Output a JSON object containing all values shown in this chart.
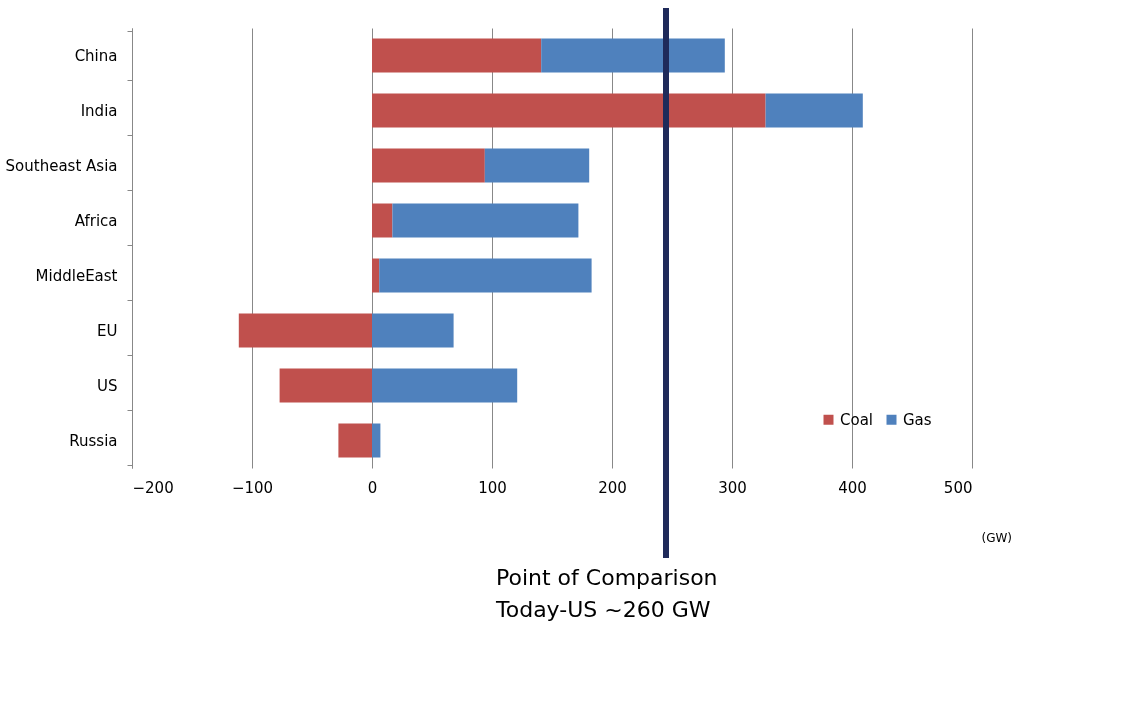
{
  "chart_data": {
    "type": "bar",
    "orientation": "horizontal",
    "stacked": true,
    "categories": [
      "China",
      "India",
      "Southeast Asia",
      "Africa",
      "MiddleEast",
      "EU",
      "US",
      "Russia"
    ],
    "series": [
      {
        "name": "Coal",
        "color": "#c0504d",
        "values": [
          141,
          328,
          94,
          17,
          6,
          -111,
          -77,
          -28
        ]
      },
      {
        "name": "Gas",
        "color": "#4f81bd",
        "values": [
          153,
          81,
          87,
          155,
          177,
          68,
          121,
          7
        ]
      }
    ],
    "xlim": [
      -200,
      500
    ],
    "xticks": [
      -200,
      -100,
      0,
      100,
      200,
      300,
      400,
      500
    ],
    "grid": "x",
    "legend": "bottom right",
    "ref_lines": [
      {
        "axis": "x",
        "value": 245,
        "label": "Point of Comparison\nToday-US ~260 GW",
        "color": "#1f2a5a"
      }
    ],
    "annotations": [
      "(GW)"
    ]
  }
}
